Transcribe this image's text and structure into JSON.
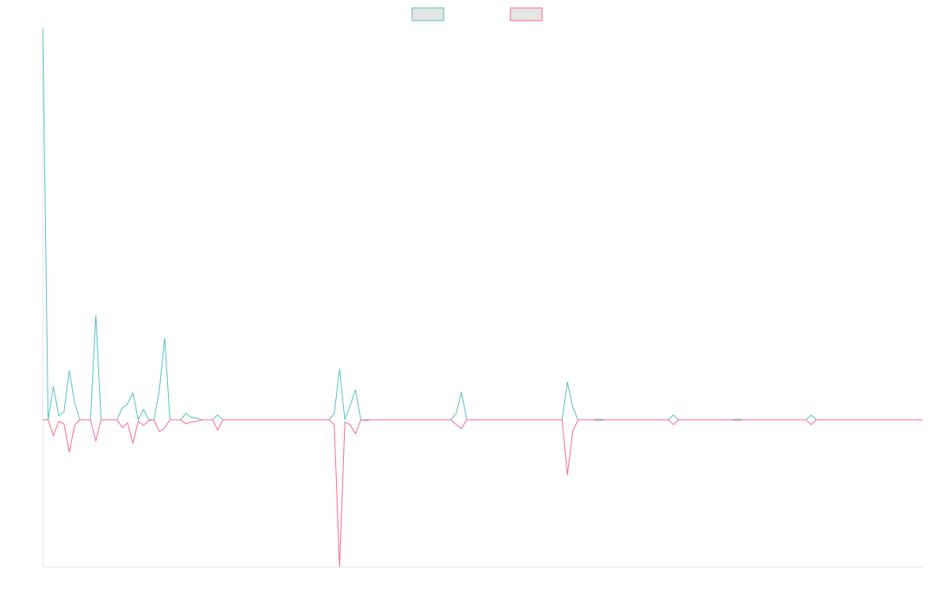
{
  "chart_data": {
    "type": "line",
    "x": [
      0,
      1,
      2,
      3,
      4,
      5,
      6,
      7,
      8,
      9,
      10,
      11,
      12,
      13,
      14,
      15,
      16,
      17,
      18,
      19,
      20,
      21,
      22,
      23,
      24,
      25,
      26,
      27,
      28,
      29,
      30,
      31,
      32,
      33,
      34,
      54,
      55,
      56,
      57,
      58,
      59,
      60,
      61,
      62,
      77,
      78,
      79,
      80,
      98,
      99,
      100,
      101,
      104,
      105,
      106,
      118,
      119,
      120,
      130,
      131,
      132,
      144,
      145,
      146,
      166
    ],
    "series": [
      {
        "color": "#4bc0c0",
        "values": [
          49.4,
          0,
          4.2,
          0.5,
          1,
          6.2,
          2.2,
          0,
          0,
          0,
          13.2,
          0,
          0,
          0,
          0,
          1.5,
          2,
          3.4,
          0,
          1.3,
          0,
          0,
          3.8,
          10.3,
          0,
          0,
          0,
          0.8,
          0.3,
          0.2,
          0,
          0,
          0,
          0.6,
          0,
          0,
          0.8,
          6.4,
          0,
          1.8,
          3.8,
          0,
          0,
          0,
          0,
          0.8,
          3.5,
          0,
          0,
          4.8,
          1.6,
          0,
          0,
          0.1,
          0,
          0,
          0.6,
          0,
          0,
          0.1,
          0,
          0,
          0.6,
          0,
          0
        ]
      },
      {
        "color": "#ff6384",
        "values": [
          0,
          0,
          -2,
          -0.2,
          -0.5,
          -4.1,
          -0.7,
          0,
          0,
          0,
          -2.7,
          0,
          0,
          0,
          0,
          -1,
          -0.4,
          -3,
          -0.2,
          -0.7,
          -0.1,
          0,
          -1.5,
          -1,
          0,
          0,
          0,
          -0.5,
          -0.3,
          -0.2,
          0,
          0,
          0,
          -1.3,
          0,
          0,
          -0.6,
          -18.6,
          -0.3,
          -0.6,
          -1.8,
          0,
          -0.1,
          0,
          0,
          -0.6,
          -1.1,
          0,
          0,
          -7,
          -1.5,
          0,
          0,
          -0.1,
          0,
          0,
          -0.6,
          0,
          0,
          -0.1,
          0,
          0,
          -0.6,
          0,
          0
        ]
      }
    ],
    "xlim": [
      0,
      166
    ],
    "ylim": [
      -18.6,
      49.4
    ],
    "legend": "top"
  }
}
